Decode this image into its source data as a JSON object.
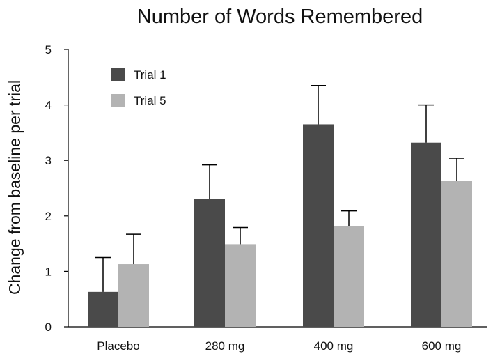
{
  "chart_data": {
    "type": "bar",
    "title": "Number of Words Remembered",
    "xlabel": "",
    "ylabel": "Change from baseline per trial",
    "categories": [
      "Placebo",
      "280 mg",
      "400 mg",
      "600 mg"
    ],
    "ylim": [
      0,
      5
    ],
    "yticks": [
      0,
      1,
      2,
      3,
      4,
      5
    ],
    "grid": false,
    "legend_position": "top-left",
    "series": [
      {
        "name": "Trial 1",
        "color": "#4a4a4a",
        "values": [
          0.63,
          2.3,
          3.65,
          3.32
        ],
        "error": [
          0.62,
          0.62,
          0.7,
          0.68
        ]
      },
      {
        "name": "Trial 5",
        "color": "#b3b3b3",
        "values": [
          1.13,
          1.49,
          1.82,
          2.63
        ],
        "error": [
          0.54,
          0.3,
          0.27,
          0.41
        ]
      }
    ]
  }
}
